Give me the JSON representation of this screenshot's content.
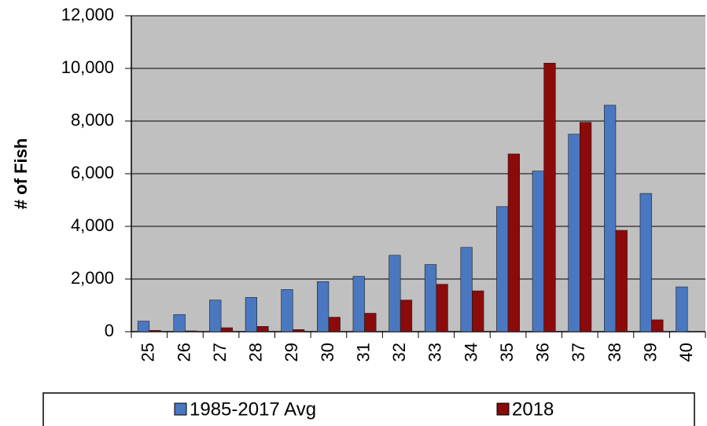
{
  "chart_data": {
    "type": "bar",
    "y_label": "# of Fish",
    "categories": [
      "25",
      "26",
      "27",
      "28",
      "29",
      "30",
      "31",
      "32",
      "33",
      "34",
      "35",
      "36",
      "37",
      "38",
      "39",
      "40"
    ],
    "series": [
      {
        "name": "1985-2017 Avg",
        "color": "#4a78c0",
        "values": [
          400,
          650,
          1200,
          1300,
          1600,
          1900,
          2100,
          2900,
          2550,
          3200,
          4750,
          6100,
          7500,
          8600,
          5250,
          1700
        ]
      },
      {
        "name": "2018",
        "color": "#8b0a0a",
        "values": [
          50,
          30,
          150,
          200,
          80,
          550,
          700,
          1200,
          1800,
          1550,
          6750,
          10200,
          7950,
          3850,
          450,
          0
        ]
      }
    ],
    "ylim": [
      0,
      12000
    ],
    "yticks": [
      0,
      {
        "value": 2000,
        "label": "2,000"
      },
      {
        "value": 4000,
        "label": "4,000"
      },
      {
        "value": 6000,
        "label": "6,000"
      },
      {
        "value": 8000,
        "label": "8,000"
      },
      {
        "value": 10000,
        "label": "10,000"
      },
      {
        "value": 12000,
        "label": "12,000"
      }
    ],
    "grid": true,
    "legend": "bottom"
  }
}
